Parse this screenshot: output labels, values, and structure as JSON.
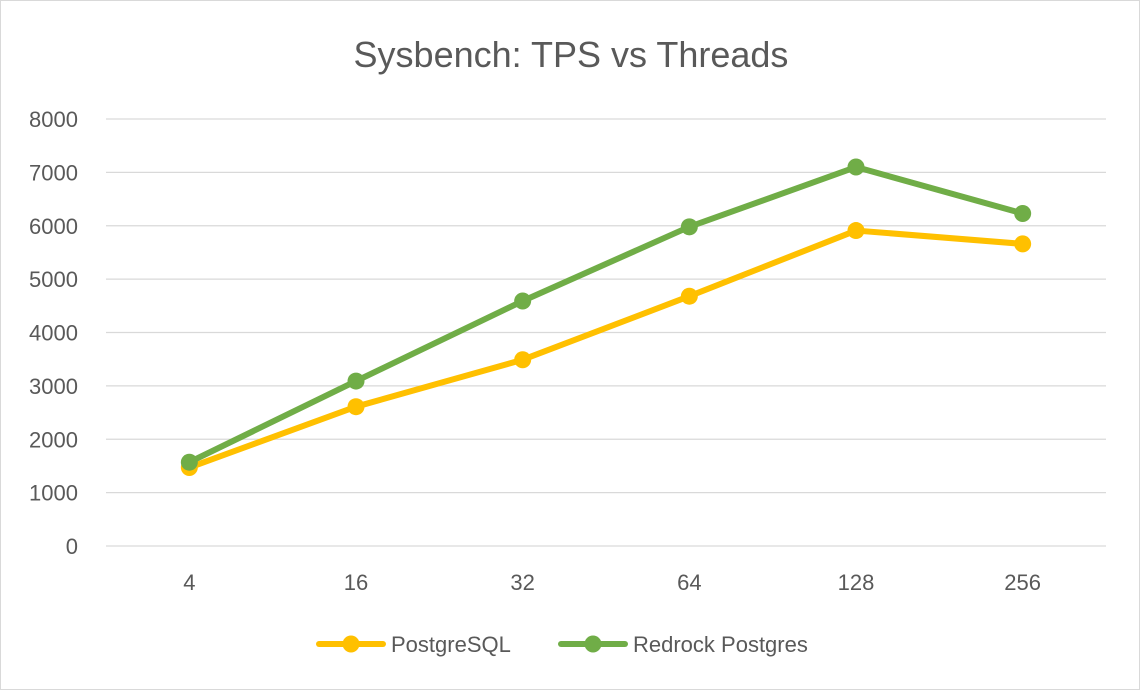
{
  "chart_data": {
    "type": "line",
    "title": "Sysbench: TPS vs Threads",
    "categories": [
      "4",
      "16",
      "32",
      "64",
      "128",
      "256"
    ],
    "series": [
      {
        "name": "PostgreSQL",
        "color": "#FFC000",
        "values": [
          1470,
          2610,
          3490,
          4680,
          5910,
          5660
        ]
      },
      {
        "name": "Redrock Postgres",
        "color": "#70AD47",
        "values": [
          1570,
          3090,
          4590,
          5980,
          7100,
          6230
        ]
      }
    ],
    "ylim": [
      0,
      8000
    ],
    "yticks": [
      0,
      1000,
      2000,
      3000,
      4000,
      5000,
      6000,
      7000,
      8000
    ],
    "grid": true,
    "legend": "bottom"
  }
}
